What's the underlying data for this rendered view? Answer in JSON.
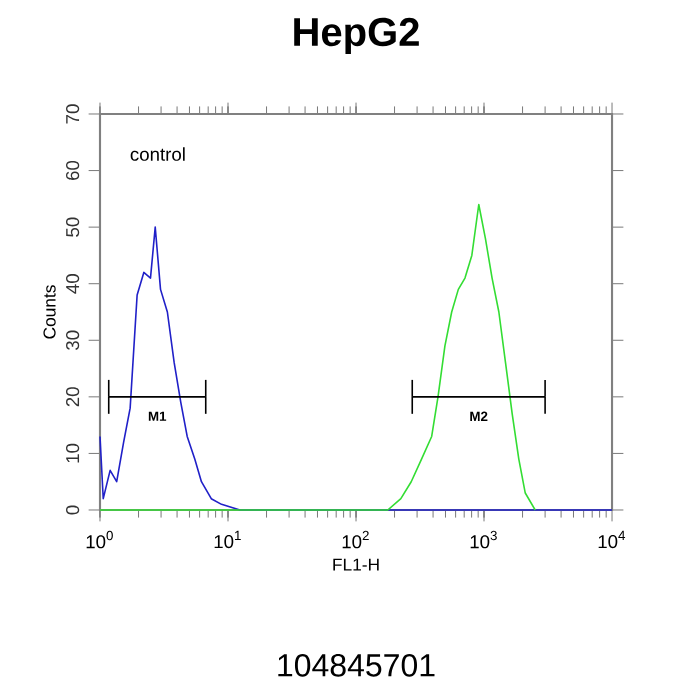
{
  "chart_data": {
    "type": "line",
    "title": "HepG2",
    "xlabel": "FL1-H",
    "ylabel": "Counts",
    "log": "x",
    "marker": "none",
    "grid": false,
    "legend": false,
    "xlim": [
      1,
      10000
    ],
    "ylim": [
      0,
      70
    ],
    "xticks": [
      {
        "value": 1,
        "label": "10$^{0}$"
      },
      {
        "value": 10,
        "label": "10$^{1}$"
      },
      {
        "value": 100,
        "label": "10$^{2}$"
      },
      {
        "value": 1000,
        "label": "10$^{3}$"
      },
      {
        "value": 10000,
        "label": "10$^{4}$"
      }
    ],
    "yticks": [
      0,
      10,
      20,
      30,
      40,
      50,
      60,
      70
    ],
    "series": [
      {
        "color": "#2020c8",
        "x": [
          1,
          1.06,
          1.2,
          1.35,
          1.53,
          1.72,
          1.95,
          2.2,
          2.48,
          2.7,
          2.97,
          3.36,
          3.8,
          4.28,
          4.8,
          5.5,
          6.2,
          7.4,
          8.9,
          12.4,
          50,
          200,
          1000,
          10000
        ],
        "values": [
          13,
          2,
          7,
          5,
          12,
          18,
          38,
          42,
          41,
          50,
          39,
          35,
          26,
          19,
          13,
          9,
          5,
          2,
          1,
          0,
          0,
          0,
          0,
          0
        ]
      },
      {
        "color": "#33dd33",
        "x": [
          1,
          12,
          177,
          224,
          270,
          325,
          390,
          437,
          495,
          559,
          630,
          710,
          803,
          910,
          1025,
          1156,
          1306,
          1473,
          1660,
          1870,
          2100,
          2510
        ],
        "values": [
          0,
          0,
          0,
          2,
          5,
          9,
          13,
          20,
          29,
          35,
          39,
          41,
          45,
          54,
          48,
          41,
          35,
          26,
          17,
          9,
          3,
          0
        ]
      },
      {
        "name": "M1",
        "color": "#000000",
        "x": [
          1.17,
          6.7
        ],
        "values": [
          20,
          20
        ],
        "errors": [
          3,
          3
        ]
      },
      {
        "name": "M2",
        "color": "#000000",
        "x": [
          275,
          3000
        ],
        "values": [
          20,
          20
        ],
        "errors": [
          3,
          3
        ]
      }
    ],
    "annotations": [
      "control",
      "104845701"
    ]
  }
}
